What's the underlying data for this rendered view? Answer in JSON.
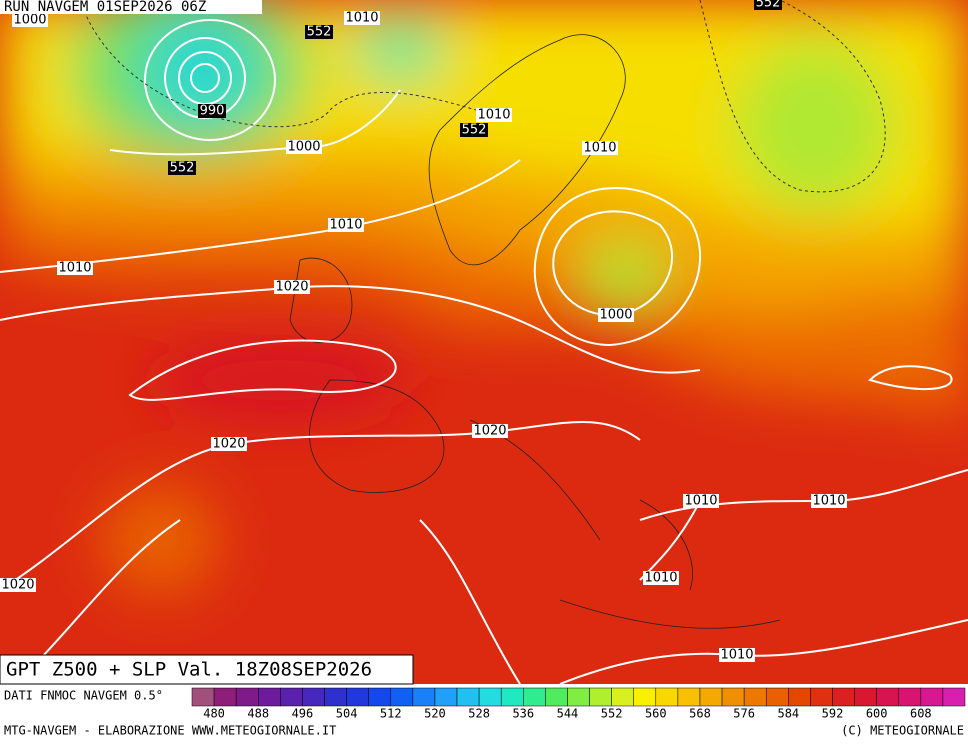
{
  "header": {
    "run": "RUN NAVGEM 01SEP2026 06Z"
  },
  "map": {
    "contour_labels": [
      "1000",
      "1010",
      "552",
      "552",
      "990",
      "1000",
      "552",
      "1010",
      "552",
      "1010",
      "1010",
      "1010",
      "1020",
      "1000",
      "1020",
      "1020",
      "1010",
      "1010",
      "1010",
      "1020",
      "1010"
    ]
  },
  "footer": {
    "title": "GPT Z500 + SLP Val. 18Z08SEP2026",
    "source": "DATI FNMOC NAVGEM 0.5°",
    "credit": "MTG-NAVGEM - ELABORAZIONE WWW.METEOGIORNALE.IT",
    "copyright": "(C) METEOGIORNALE"
  },
  "colorbar": {
    "ticks": [
      480,
      488,
      496,
      504,
      512,
      520,
      528,
      536,
      544,
      552,
      560,
      568,
      576,
      584,
      592,
      600,
      608
    ],
    "colors": [
      "#a0507a",
      "#8e1e78",
      "#7f1a8a",
      "#6c1c9a",
      "#5a22ac",
      "#4628bc",
      "#3030cc",
      "#2038dc",
      "#1448ea",
      "#1060f4",
      "#1a80f8",
      "#20a0f8",
      "#22c0f0",
      "#22dce0",
      "#20e8c0",
      "#30ec90",
      "#50ec60",
      "#80ee40",
      "#b0ee30",
      "#d8f020",
      "#f8f000",
      "#f8d800",
      "#f8c000",
      "#f4a800",
      "#f09000",
      "#ec7800",
      "#e86000",
      "#e44800",
      "#e03010",
      "#dc2020",
      "#d81830",
      "#d81450",
      "#d81470",
      "#d81890",
      "#d820b0"
    ]
  }
}
